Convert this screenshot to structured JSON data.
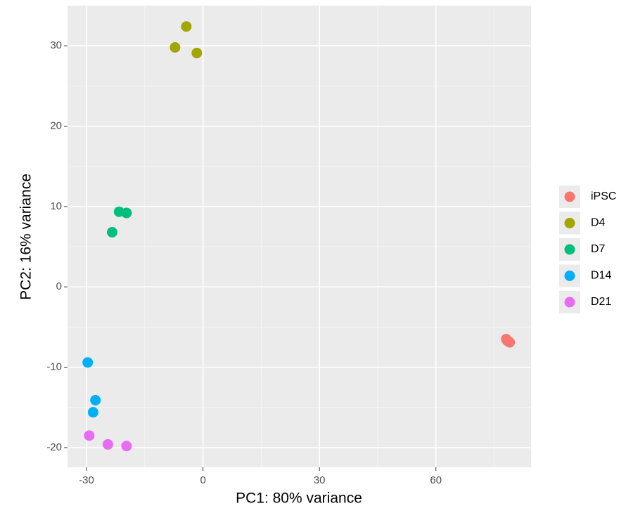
{
  "chart_data": {
    "type": "scatter",
    "xlabel": "PC1: 80% variance",
    "ylabel": "PC2: 16% variance",
    "xlim": [
      -34.9,
      84.5
    ],
    "ylim": [
      -22.45,
      35.0
    ],
    "xticks": [
      -30,
      0,
      30,
      60
    ],
    "yticks": [
      -20,
      -10,
      0,
      10,
      20,
      30
    ],
    "grid": true,
    "legend": "right",
    "series": [
      {
        "name": "iPSC",
        "color": "#F8766D",
        "x": [
          78.1,
          78.4,
          79.0
        ],
        "y": [
          -6.5,
          -6.7,
          -6.9
        ]
      },
      {
        "name": "D4",
        "color": "#A3A500",
        "x": [
          -4.3,
          -7.2,
          -1.6
        ],
        "y": [
          32.4,
          29.8,
          29.1
        ]
      },
      {
        "name": "D7",
        "color": "#00BF7D",
        "x": [
          -21.6,
          -19.7,
          -23.4
        ],
        "y": [
          9.35,
          9.2,
          6.8
        ]
      },
      {
        "name": "D14",
        "color": "#00B0F6",
        "x": [
          -29.7,
          -27.7,
          -28.3
        ],
        "y": [
          -9.4,
          -14.1,
          -15.6
        ]
      },
      {
        "name": "D21",
        "color": "#E76BF3",
        "x": [
          -29.3,
          -24.5,
          -19.7
        ],
        "y": [
          -18.5,
          -19.6,
          -19.8
        ]
      }
    ]
  }
}
